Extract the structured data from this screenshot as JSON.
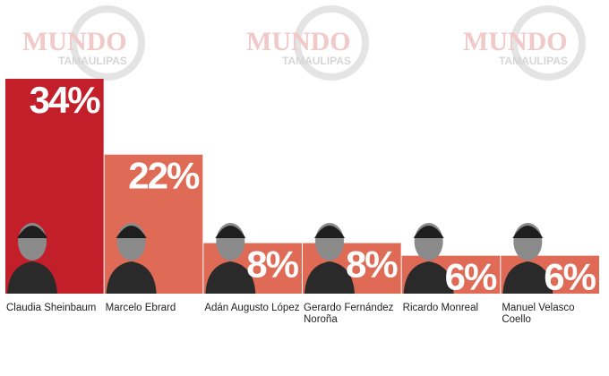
{
  "chart_data": {
    "type": "bar",
    "watermark": {
      "brand": "MUNDO",
      "region": "TAMAULIPAS"
    },
    "categories": [
      "Claudia Sheinbaum",
      "Marcelo Ebrard",
      "Adán Augusto López",
      "Gerardo Fernández Noroña",
      "Ricardo Monreal",
      "Manuel Velasco Coello"
    ],
    "values": [
      34,
      22,
      8,
      8,
      6,
      6
    ],
    "value_labels": [
      "34%",
      "22%",
      "8%",
      "8%",
      "6%",
      "6%"
    ],
    "colors": [
      "#c21f2b",
      "#df6b56",
      "#df6b56",
      "#df6b56",
      "#df6b56",
      "#df6b56"
    ],
    "ylim": [
      0,
      34
    ]
  }
}
